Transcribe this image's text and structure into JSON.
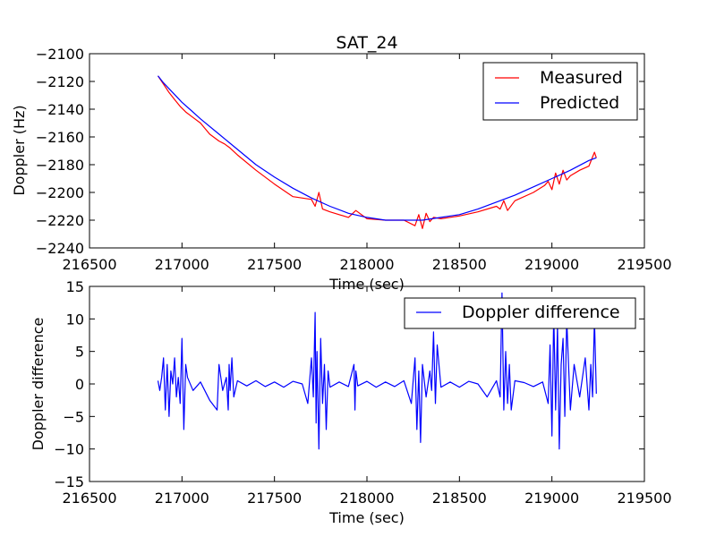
{
  "chart_data": [
    {
      "type": "line",
      "title": "SAT_24",
      "xlabel": "Time (sec)",
      "ylabel": "Doppler (Hz)",
      "xlim": [
        216500,
        219500
      ],
      "ylim": [
        -2240,
        -2100
      ],
      "xticks": [
        216500,
        217000,
        217500,
        218000,
        218500,
        219000,
        219500
      ],
      "yticks": [
        -2100,
        -2120,
        -2140,
        -2160,
        -2180,
        -2200,
        -2220,
        -2240
      ],
      "legend_position": "upper-right",
      "grid": false,
      "series": [
        {
          "name": "Measured",
          "color": "#ff0000",
          "x": [
            216870,
            216900,
            216930,
            216960,
            216990,
            217020,
            217050,
            217100,
            217150,
            217200,
            217230,
            217260,
            217300,
            217400,
            217500,
            217600,
            217700,
            217720,
            217740,
            217760,
            217800,
            217900,
            217940,
            218000,
            218100,
            218200,
            218260,
            218280,
            218300,
            218320,
            218340,
            218360,
            218400,
            218500,
            218600,
            218700,
            218720,
            218740,
            218760,
            218800,
            218900,
            218960,
            218980,
            219000,
            219020,
            219040,
            219060,
            219080,
            219100,
            219150,
            219200,
            219230,
            219240
          ],
          "y": [
            -2116,
            -2122,
            -2128,
            -2133,
            -2138,
            -2142,
            -2145,
            -2150,
            -2158,
            -2163,
            -2165,
            -2168,
            -2173,
            -2184,
            -2194,
            -2203,
            -2205,
            -2210,
            -2200,
            -2212,
            -2214,
            -2218,
            -2213,
            -2219,
            -2220,
            -2220,
            -2224,
            -2216,
            -2226,
            -2215,
            -2221,
            -2218,
            -2219,
            -2217,
            -2214,
            -2210,
            -2212,
            -2206,
            -2213,
            -2206,
            -2200,
            -2195,
            -2192,
            -2198,
            -2186,
            -2194,
            -2184,
            -2191,
            -2188,
            -2184,
            -2181,
            -2171,
            -2175
          ]
        },
        {
          "name": "Predicted",
          "color": "#0000ff",
          "x": [
            216870,
            216900,
            216950,
            217000,
            217050,
            217100,
            217200,
            217300,
            217400,
            217500,
            217600,
            217700,
            217800,
            217900,
            218000,
            218100,
            218200,
            218300,
            218400,
            218500,
            218600,
            218700,
            218800,
            218900,
            219000,
            219100,
            219200,
            219240
          ],
          "y": [
            -2116,
            -2121,
            -2128,
            -2135,
            -2141,
            -2147,
            -2158,
            -2169,
            -2180,
            -2189,
            -2197,
            -2204,
            -2210,
            -2215,
            -2218,
            -2220,
            -2220,
            -2220,
            -2218,
            -2216,
            -2212,
            -2207,
            -2202,
            -2196,
            -2190,
            -2184,
            -2177,
            -2175
          ]
        }
      ]
    },
    {
      "type": "line",
      "title": "",
      "xlabel": "Time (sec)",
      "ylabel": "Doppler difference",
      "xlim": [
        216500,
        219500
      ],
      "ylim": [
        -15,
        15
      ],
      "xticks": [
        216500,
        217000,
        217500,
        218000,
        218500,
        219000,
        219500
      ],
      "yticks": [
        15,
        10,
        5,
        0,
        -5,
        -10,
        -15
      ],
      "legend_position": "upper-right",
      "grid": false,
      "series": [
        {
          "name": "Doppler difference",
          "color": "#0000ff",
          "x": [
            216870,
            216880,
            216890,
            216900,
            216910,
            216920,
            216930,
            216940,
            216950,
            216960,
            216970,
            216980,
            216990,
            217000,
            217010,
            217020,
            217030,
            217060,
            217100,
            217150,
            217190,
            217200,
            217220,
            217240,
            217250,
            217255,
            217260,
            217270,
            217280,
            217300,
            217350,
            217400,
            217450,
            217500,
            217550,
            217600,
            217650,
            217680,
            217700,
            217710,
            217720,
            217725,
            217730,
            217740,
            217750,
            217760,
            217770,
            217780,
            217790,
            217800,
            217850,
            217900,
            217930,
            217935,
            217940,
            217945,
            217950,
            218000,
            218050,
            218100,
            218150,
            218200,
            218240,
            218260,
            218270,
            218280,
            218290,
            218300,
            218320,
            218340,
            218350,
            218360,
            218370,
            218380,
            218400,
            218450,
            218500,
            218550,
            218600,
            218650,
            218700,
            218720,
            218730,
            218740,
            218750,
            218760,
            218770,
            218780,
            218800,
            218850,
            218900,
            218950,
            218980,
            218990,
            219000,
            219010,
            219020,
            219030,
            219040,
            219050,
            219060,
            219070,
            219080,
            219100,
            219120,
            219150,
            219180,
            219200,
            219210,
            219220,
            219230,
            219240
          ],
          "y": [
            0.5,
            -1,
            1,
            4,
            -4,
            3,
            -5,
            2,
            0,
            4,
            -2,
            1,
            -3,
            7,
            -7,
            3,
            1,
            -1,
            0.3,
            -2.5,
            -4,
            3,
            -1,
            1,
            -4,
            3,
            -1,
            4,
            -2,
            0.5,
            -0.3,
            0.5,
            -0.4,
            0.3,
            -0.5,
            0.4,
            0,
            -3,
            4,
            -2,
            11,
            -6,
            5,
            -10,
            7,
            -3,
            3,
            -7,
            2,
            -0.5,
            0.3,
            -0.4,
            3,
            -4,
            2,
            1,
            -0.3,
            0.4,
            -0.5,
            0.3,
            -0.4,
            0.5,
            -3,
            4,
            -7,
            2,
            -9,
            3,
            -2,
            2,
            -1,
            8,
            -3,
            6,
            -0.5,
            0.3,
            -0.5,
            0.4,
            0,
            -2,
            0.5,
            -2,
            14,
            -4,
            5,
            -3,
            3,
            -4,
            0.5,
            0.2,
            -0.4,
            0.3,
            -3,
            6,
            -8,
            11,
            -4,
            9,
            -10,
            3,
            7,
            -5,
            10,
            -4,
            3,
            -2,
            4,
            -4,
            3,
            -2,
            10,
            -1.5
          ]
        }
      ]
    }
  ]
}
